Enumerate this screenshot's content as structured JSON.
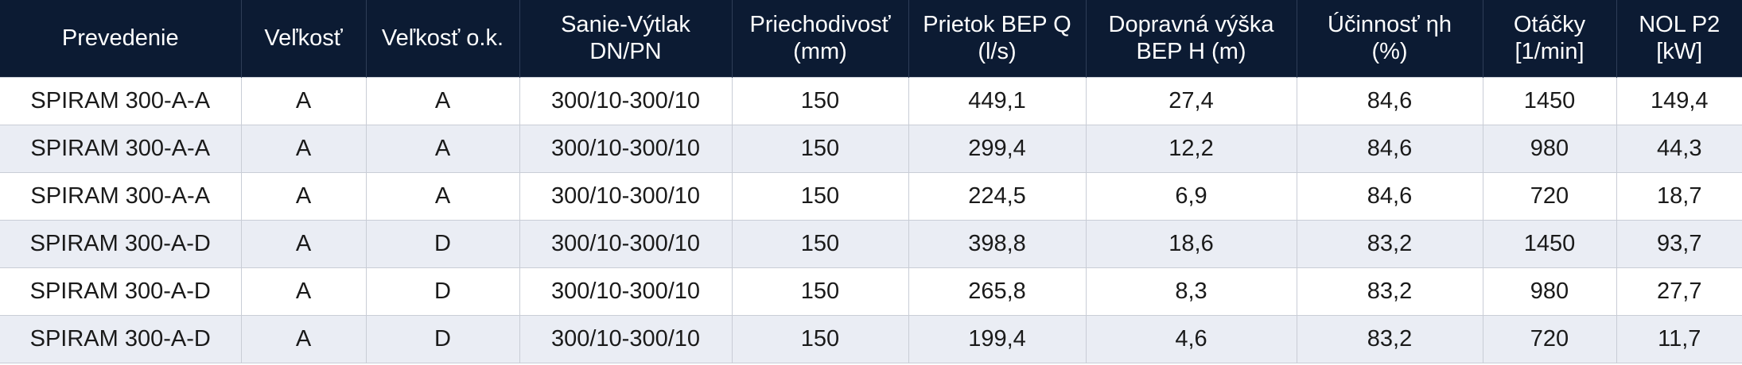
{
  "table": {
    "columns": [
      [
        "Prevedenie"
      ],
      [
        "Veľkosť"
      ],
      [
        "Veľkosť o.k."
      ],
      [
        "Sanie-Výtlak",
        "DN/PN"
      ],
      [
        "Priechodivosť",
        "(mm)"
      ],
      [
        "Prietok BEP Q",
        "(l/s)"
      ],
      [
        "Dopravná výška",
        "BEP H (m)"
      ],
      [
        "Účinnosť ηh",
        "(%)"
      ],
      [
        "Otáčky",
        "[1/min]"
      ],
      [
        "NOL P2",
        "[kW]"
      ]
    ],
    "rows": [
      [
        "SPIRAM 300-A-A",
        "A",
        "A",
        "300/10-300/10",
        "150",
        "449,1",
        "27,4",
        "84,6",
        "1450",
        "149,4"
      ],
      [
        "SPIRAM 300-A-A",
        "A",
        "A",
        "300/10-300/10",
        "150",
        "299,4",
        "12,2",
        "84,6",
        "980",
        "44,3"
      ],
      [
        "SPIRAM 300-A-A",
        "A",
        "A",
        "300/10-300/10",
        "150",
        "224,5",
        "6,9",
        "84,6",
        "720",
        "18,7"
      ],
      [
        "SPIRAM 300-A-D",
        "A",
        "D",
        "300/10-300/10",
        "150",
        "398,8",
        "18,6",
        "83,2",
        "1450",
        "93,7"
      ],
      [
        "SPIRAM 300-A-D",
        "A",
        "D",
        "300/10-300/10",
        "150",
        "265,8",
        "8,3",
        "83,2",
        "980",
        "27,7"
      ],
      [
        "SPIRAM 300-A-D",
        "A",
        "D",
        "300/10-300/10",
        "150",
        "199,4",
        "4,6",
        "83,2",
        "720",
        "11,7"
      ]
    ]
  }
}
